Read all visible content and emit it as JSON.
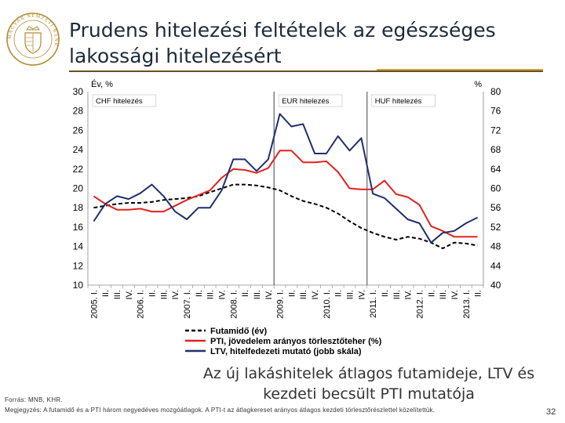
{
  "header": {
    "title_line1": "Prudens hitelezési feltételek az egészséges",
    "title_line2": "lakossági hitelezésért"
  },
  "logo": {
    "icon": "mnb-seal-icon",
    "text": "MAGYAR NEMZETI BANK"
  },
  "caption": {
    "line1": "Az új lakáshitelek átlagos futamideje, LTV és",
    "line2": "kezdeti becsült PTI mutatója"
  },
  "footer": {
    "source": "Forrás: MNB, KHR.",
    "note": "Megjegyzés: A futamidő és a PTI három negyedéves mozgóátlagok. A PTI-t az átlagkereset arányos átlagos kezdeti törlesztőrészlettel közelítettük.",
    "page_number": "32"
  },
  "chart_data": {
    "type": "line",
    "y_left": {
      "label": "Év, %",
      "min": 10,
      "max": 30,
      "ticks": [
        10,
        12,
        14,
        16,
        18,
        20,
        22,
        24,
        26,
        28,
        30
      ]
    },
    "y_right": {
      "label": "%",
      "min": 40,
      "max": 80,
      "ticks": [
        40,
        44,
        48,
        52,
        56,
        60,
        64,
        68,
        72,
        76,
        80
      ]
    },
    "x_labels": [
      "2005. I.",
      "II.",
      "III.",
      "IV.",
      "2006. I.",
      "II.",
      "III.",
      "IV.",
      "2007. I.",
      "II.",
      "III.",
      "IV.",
      "2008. I.",
      "II.",
      "III.",
      "IV.",
      "2009. I.",
      "II.",
      "III.",
      "IV.",
      "2010. I.",
      "II.",
      "III.",
      "IV.",
      "2011. I.",
      "II.",
      "III.",
      "IV.",
      "2012. I.",
      "II.",
      "III.",
      "IV.",
      "2013. I.",
      "II."
    ],
    "regions": [
      {
        "label": "CHF hitelezés",
        "start_index": 0,
        "end_index": 15
      },
      {
        "label": "EUR hitelezés",
        "start_index": 15,
        "end_index": 23
      },
      {
        "label": "HUF hitelezés",
        "start_index": 23,
        "end_index": 33
      }
    ],
    "series": [
      {
        "name": "Futamidő (év)",
        "axis": "left",
        "color": "#000000",
        "dash": true,
        "values": [
          18.0,
          18.2,
          18.4,
          18.5,
          18.5,
          18.6,
          18.8,
          18.9,
          19.0,
          19.2,
          19.6,
          20.0,
          20.4,
          20.4,
          20.3,
          20.1,
          19.8,
          19.2,
          18.7,
          18.4,
          18.0,
          17.4,
          16.6,
          15.9,
          15.4,
          15.0,
          14.7,
          15.0,
          14.8,
          14.4,
          13.8,
          14.4,
          14.3,
          14.1
        ]
      },
      {
        "name": "PTI, jövedelem arányos törlesztőteher (%)",
        "axis": "left",
        "color": "#e0231d",
        "dash": false,
        "values": [
          19.2,
          18.4,
          17.8,
          17.8,
          17.9,
          17.6,
          17.6,
          18.2,
          18.8,
          19.3,
          19.8,
          21.1,
          22.0,
          21.9,
          21.6,
          22.1,
          23.9,
          23.9,
          22.7,
          22.7,
          22.8,
          21.7,
          20.0,
          19.9,
          19.9,
          20.8,
          19.4,
          19.1,
          18.3,
          16.1,
          15.6,
          15.0,
          15.0,
          15.0
        ]
      },
      {
        "name": "LTV, hitelfedezeti mutató (jobb skála)",
        "axis": "right",
        "color": "#1f2f6e",
        "dash": false,
        "values": [
          53.2,
          56.8,
          58.4,
          57.8,
          59.0,
          60.8,
          58.4,
          55.2,
          53.6,
          56.0,
          56.0,
          59.6,
          66.0,
          66.0,
          63.6,
          66.0,
          75.4,
          72.8,
          73.3,
          67.2,
          67.2,
          70.8,
          67.8,
          70.4,
          58.9,
          58.0,
          55.8,
          53.6,
          52.8,
          48.8,
          50.8,
          51.2,
          52.8,
          54.0
        ]
      }
    ]
  }
}
